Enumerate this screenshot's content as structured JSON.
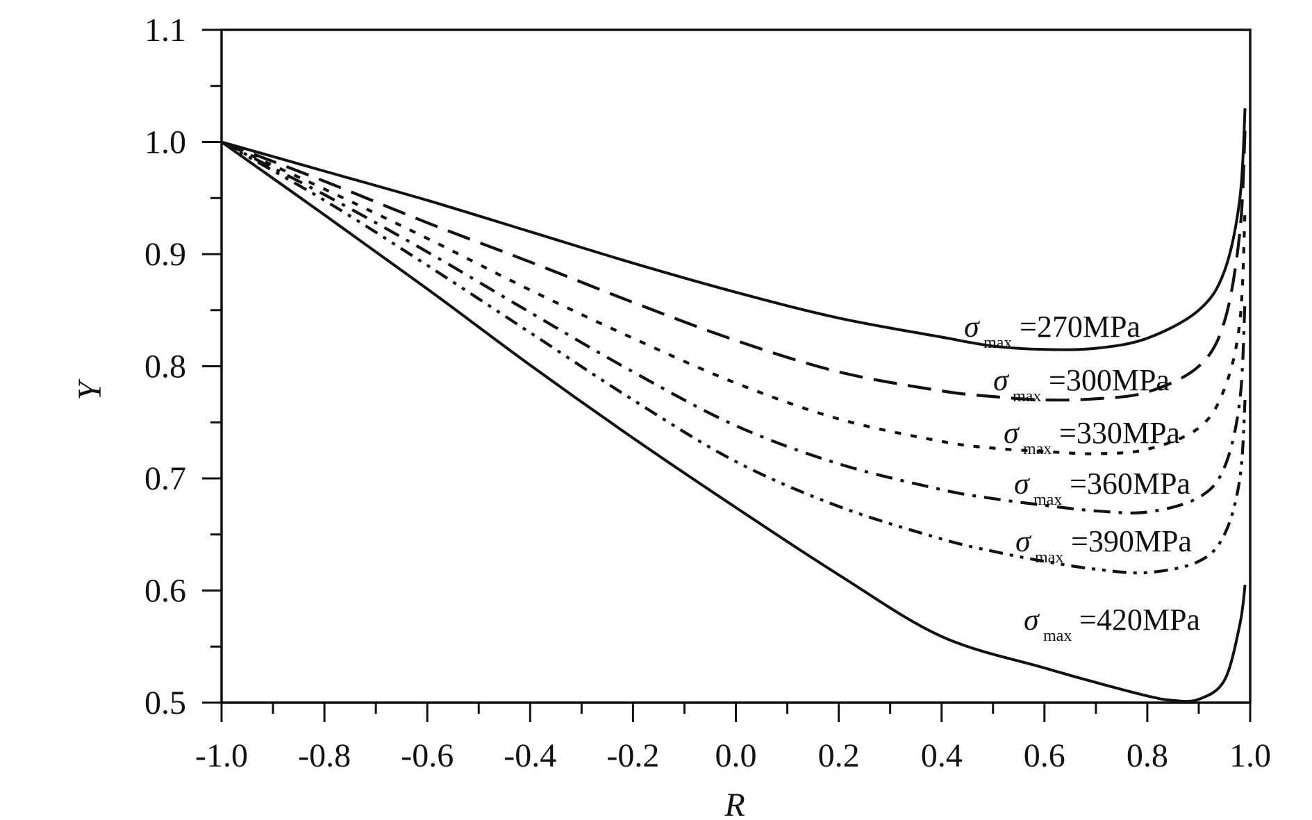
{
  "chart_data": {
    "type": "line",
    "title": "",
    "xlabel": "R",
    "ylabel": "Y",
    "xlim": [
      -1.0,
      1.0
    ],
    "ylim": [
      0.5,
      1.1
    ],
    "x_ticks": [
      "-1.0",
      "-0.8",
      "-0.6",
      "-0.4",
      "-0.2",
      "0.0",
      "0.2",
      "0.4",
      "0.6",
      "0.8",
      "1.0"
    ],
    "y_ticks": [
      "0.5",
      "0.6",
      "0.7",
      "0.8",
      "0.9",
      "1.0",
      "1.1"
    ],
    "grid": false,
    "legend": "none",
    "series": [
      {
        "label_prefix": "σ",
        "label_subscript": "max",
        "label_value": "=270MPa",
        "style": "solid",
        "x": [
          -1.0,
          -0.8,
          -0.6,
          -0.4,
          -0.2,
          0.0,
          0.2,
          0.4,
          0.5,
          0.6,
          0.7,
          0.8,
          0.9,
          0.95,
          0.98,
          0.99
        ],
        "y": [
          1.0,
          0.974,
          0.948,
          0.92,
          0.892,
          0.866,
          0.843,
          0.826,
          0.818,
          0.815,
          0.816,
          0.825,
          0.85,
          0.885,
          0.95,
          1.03
        ]
      },
      {
        "label_prefix": "σ",
        "label_subscript": "max",
        "label_value": "=300MPa",
        "style": "long-dash",
        "x": [
          -1.0,
          -0.8,
          -0.6,
          -0.4,
          -0.2,
          0.0,
          0.2,
          0.4,
          0.5,
          0.6,
          0.7,
          0.8,
          0.9,
          0.95,
          0.98,
          0.99
        ],
        "y": [
          1.0,
          0.965,
          0.928,
          0.893,
          0.857,
          0.823,
          0.795,
          0.778,
          0.773,
          0.77,
          0.771,
          0.777,
          0.8,
          0.84,
          0.92,
          1.01
        ]
      },
      {
        "label_prefix": "σ",
        "label_subscript": "max",
        "label_value": "=330MPa",
        "style": "short-dot",
        "x": [
          -1.0,
          -0.8,
          -0.6,
          -0.4,
          -0.2,
          0.0,
          0.2,
          0.4,
          0.5,
          0.6,
          0.7,
          0.8,
          0.9,
          0.95,
          0.98,
          0.99
        ],
        "y": [
          1.0,
          0.958,
          0.914,
          0.868,
          0.825,
          0.785,
          0.753,
          0.733,
          0.727,
          0.724,
          0.722,
          0.726,
          0.745,
          0.78,
          0.84,
          0.94
        ]
      },
      {
        "label_prefix": "σ",
        "label_subscript": "max",
        "label_value": "=360MPa",
        "style": "dash-dot",
        "x": [
          -1.0,
          -0.8,
          -0.6,
          -0.4,
          -0.2,
          0.0,
          0.2,
          0.4,
          0.5,
          0.6,
          0.7,
          0.8,
          0.9,
          0.95,
          0.98,
          0.99
        ],
        "y": [
          1.0,
          0.953,
          0.902,
          0.848,
          0.795,
          0.747,
          0.713,
          0.69,
          0.682,
          0.676,
          0.671,
          0.67,
          0.683,
          0.71,
          0.77,
          0.86
        ]
      },
      {
        "label_prefix": "σ",
        "label_subscript": "max",
        "label_value": "=390MPa",
        "style": "dash-dot-dot",
        "x": [
          -1.0,
          -0.8,
          -0.6,
          -0.4,
          -0.2,
          0.0,
          0.2,
          0.4,
          0.5,
          0.6,
          0.7,
          0.8,
          0.9,
          0.95,
          0.98,
          0.99
        ],
        "y": [
          1.0,
          0.948,
          0.89,
          0.83,
          0.77,
          0.715,
          0.675,
          0.646,
          0.635,
          0.626,
          0.619,
          0.616,
          0.626,
          0.65,
          0.7,
          0.77
        ]
      },
      {
        "label_prefix": "σ",
        "label_subscript": "max",
        "label_value": "=420MPa",
        "style": "solid",
        "x": [
          -1.0,
          -0.8,
          -0.6,
          -0.4,
          -0.2,
          0.0,
          0.2,
          0.4,
          0.6,
          0.7,
          0.8,
          0.85,
          0.9,
          0.95,
          0.98,
          0.99
        ],
        "y": [
          1.0,
          0.935,
          0.869,
          0.801,
          0.736,
          0.674,
          0.614,
          0.559,
          0.531,
          0.518,
          0.506,
          0.502,
          0.503,
          0.52,
          0.57,
          0.605
        ]
      }
    ]
  }
}
